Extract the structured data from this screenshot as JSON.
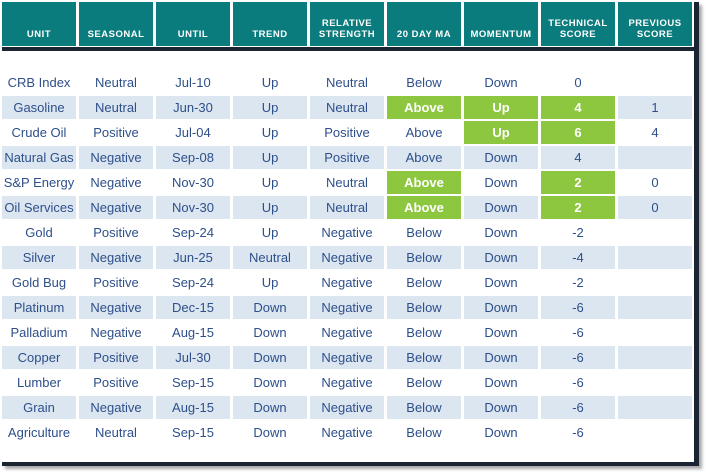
{
  "colors": {
    "teal": "#0b7c7d",
    "line": "#1b2433",
    "green": "#8dc63f",
    "stripe": "#dce6f1",
    "text": "#2d4f8a",
    "header_text": "#ffffff"
  },
  "chart_data": {
    "type": "table",
    "columns": [
      {
        "key": "unit",
        "label": "UNIT"
      },
      {
        "key": "seasonal",
        "label": "SEASONAL"
      },
      {
        "key": "until",
        "label": "UNTIL"
      },
      {
        "key": "trend",
        "label": "TREND"
      },
      {
        "key": "relative_strength",
        "label": "RELATIVE\nSTRENGTH"
      },
      {
        "key": "ma20",
        "label": "20 DAY MA"
      },
      {
        "key": "momentum",
        "label": "MOMENTUM"
      },
      {
        "key": "technical_score",
        "label": "TECHNICAL\nSCORE"
      },
      {
        "key": "previous_score",
        "label": "PREVIOUS\nSCORE"
      }
    ],
    "rows": [
      {
        "unit": "CRB Index",
        "seasonal": "Neutral",
        "until": "Jul-10",
        "trend": "Up",
        "relative_strength": "Neutral",
        "ma20": "Below",
        "momentum": "Down",
        "technical_score": "0",
        "previous_score": "",
        "highlights": []
      },
      {
        "unit": "Gasoline",
        "seasonal": "Neutral",
        "until": "Jun-30",
        "trend": "Up",
        "relative_strength": "Neutral",
        "ma20": "Above",
        "momentum": "Up",
        "technical_score": "4",
        "previous_score": "1",
        "highlights": [
          "ma20",
          "momentum",
          "technical_score"
        ]
      },
      {
        "unit": "Crude Oil",
        "seasonal": "Positive",
        "until": "Jul-04",
        "trend": "Up",
        "relative_strength": "Positive",
        "ma20": "Above",
        "momentum": "Up",
        "technical_score": "6",
        "previous_score": "4",
        "highlights": [
          "momentum",
          "technical_score"
        ]
      },
      {
        "unit": "Natural Gas",
        "seasonal": "Negative",
        "until": "Sep-08",
        "trend": "Up",
        "relative_strength": "Positive",
        "ma20": "Above",
        "momentum": "Down",
        "technical_score": "4",
        "previous_score": "",
        "highlights": []
      },
      {
        "unit": "S&P Energy",
        "seasonal": "Negative",
        "until": "Nov-30",
        "trend": "Up",
        "relative_strength": "Neutral",
        "ma20": "Above",
        "momentum": "Down",
        "technical_score": "2",
        "previous_score": "0",
        "highlights": [
          "ma20",
          "technical_score"
        ]
      },
      {
        "unit": "Oil Services",
        "seasonal": "Negative",
        "until": "Nov-30",
        "trend": "Up",
        "relative_strength": "Neutral",
        "ma20": "Above",
        "momentum": "Down",
        "technical_score": "2",
        "previous_score": "0",
        "highlights": [
          "ma20",
          "technical_score"
        ]
      },
      {
        "unit": "Gold",
        "seasonal": "Positive",
        "until": "Sep-24",
        "trend": "Up",
        "relative_strength": "Negative",
        "ma20": "Below",
        "momentum": "Down",
        "technical_score": "-2",
        "previous_score": "",
        "highlights": []
      },
      {
        "unit": "Silver",
        "seasonal": "Negative",
        "until": "Jun-25",
        "trend": "Neutral",
        "relative_strength": "Negative",
        "ma20": "Below",
        "momentum": "Down",
        "technical_score": "-4",
        "previous_score": "",
        "highlights": []
      },
      {
        "unit": "Gold Bug",
        "seasonal": "Positive",
        "until": "Sep-24",
        "trend": "Up",
        "relative_strength": "Negative",
        "ma20": "Below",
        "momentum": "Down",
        "technical_score": "-2",
        "previous_score": "",
        "highlights": []
      },
      {
        "unit": "Platinum",
        "seasonal": "Negative",
        "until": "Dec-15",
        "trend": "Down",
        "relative_strength": "Negative",
        "ma20": "Below",
        "momentum": "Down",
        "technical_score": "-6",
        "previous_score": "",
        "highlights": []
      },
      {
        "unit": "Palladium",
        "seasonal": "Negative",
        "until": "Aug-15",
        "trend": "Down",
        "relative_strength": "Negative",
        "ma20": "Below",
        "momentum": "Down",
        "technical_score": "-6",
        "previous_score": "",
        "highlights": []
      },
      {
        "unit": "Copper",
        "seasonal": "Positive",
        "until": "Jul-30",
        "trend": "Down",
        "relative_strength": "Negative",
        "ma20": "Below",
        "momentum": "Down",
        "technical_score": "-6",
        "previous_score": "",
        "highlights": []
      },
      {
        "unit": "Lumber",
        "seasonal": "Positive",
        "until": "Sep-15",
        "trend": "Down",
        "relative_strength": "Negative",
        "ma20": "Below",
        "momentum": "Down",
        "technical_score": "-6",
        "previous_score": "",
        "highlights": []
      },
      {
        "unit": "Grain",
        "seasonal": "Negative",
        "until": "Aug-15",
        "trend": "Down",
        "relative_strength": "Negative",
        "ma20": "Below",
        "momentum": "Down",
        "technical_score": "-6",
        "previous_score": "",
        "highlights": []
      },
      {
        "unit": "Agriculture",
        "seasonal": "Neutral",
        "until": "Sep-15",
        "trend": "Down",
        "relative_strength": "Negative",
        "ma20": "Below",
        "momentum": "Down",
        "technical_score": "-6",
        "previous_score": "",
        "highlights": []
      }
    ]
  }
}
